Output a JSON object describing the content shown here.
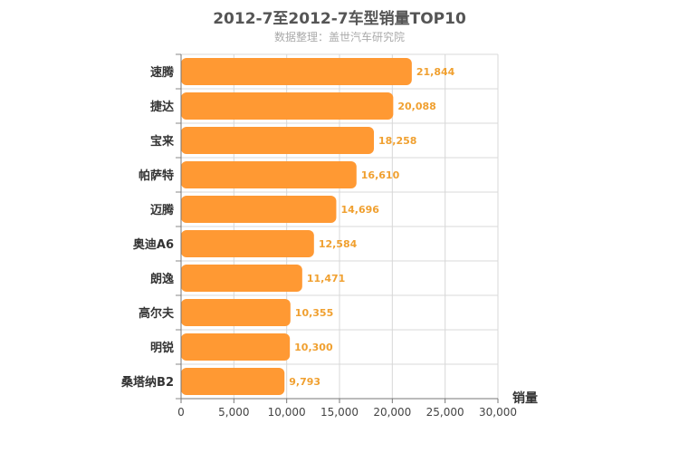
{
  "chart_data": {
    "type": "bar",
    "orientation": "horizontal",
    "title": "2012-7至2012-7车型销量TOP10",
    "subtitle": "数据整理：盖世汽车研究院",
    "xlabel": "销量",
    "categories": [
      "速腾",
      "捷达",
      "宝来",
      "帕萨特",
      "迈腾",
      "奥迪A6",
      "朗逸",
      "高尔夫",
      "明锐",
      "桑塔纳B2"
    ],
    "values": [
      21844,
      20088,
      18258,
      16610,
      14696,
      12584,
      11471,
      10355,
      10300,
      9793
    ],
    "value_labels": [
      "21,844",
      "20,088",
      "18,258",
      "16,610",
      "14,696",
      "12,584",
      "11,471",
      "10,355",
      "10,300",
      "9,793"
    ],
    "xlim": [
      0,
      30000
    ],
    "xticks": [
      0,
      5000,
      10000,
      15000,
      20000,
      25000,
      30000
    ],
    "xtick_labels": [
      "0",
      "5,000",
      "10,000",
      "15,000",
      "20,000",
      "25,000",
      "30,000"
    ],
    "grid": true,
    "bar_color": "#ff9933",
    "label_color": "#f0a030"
  }
}
